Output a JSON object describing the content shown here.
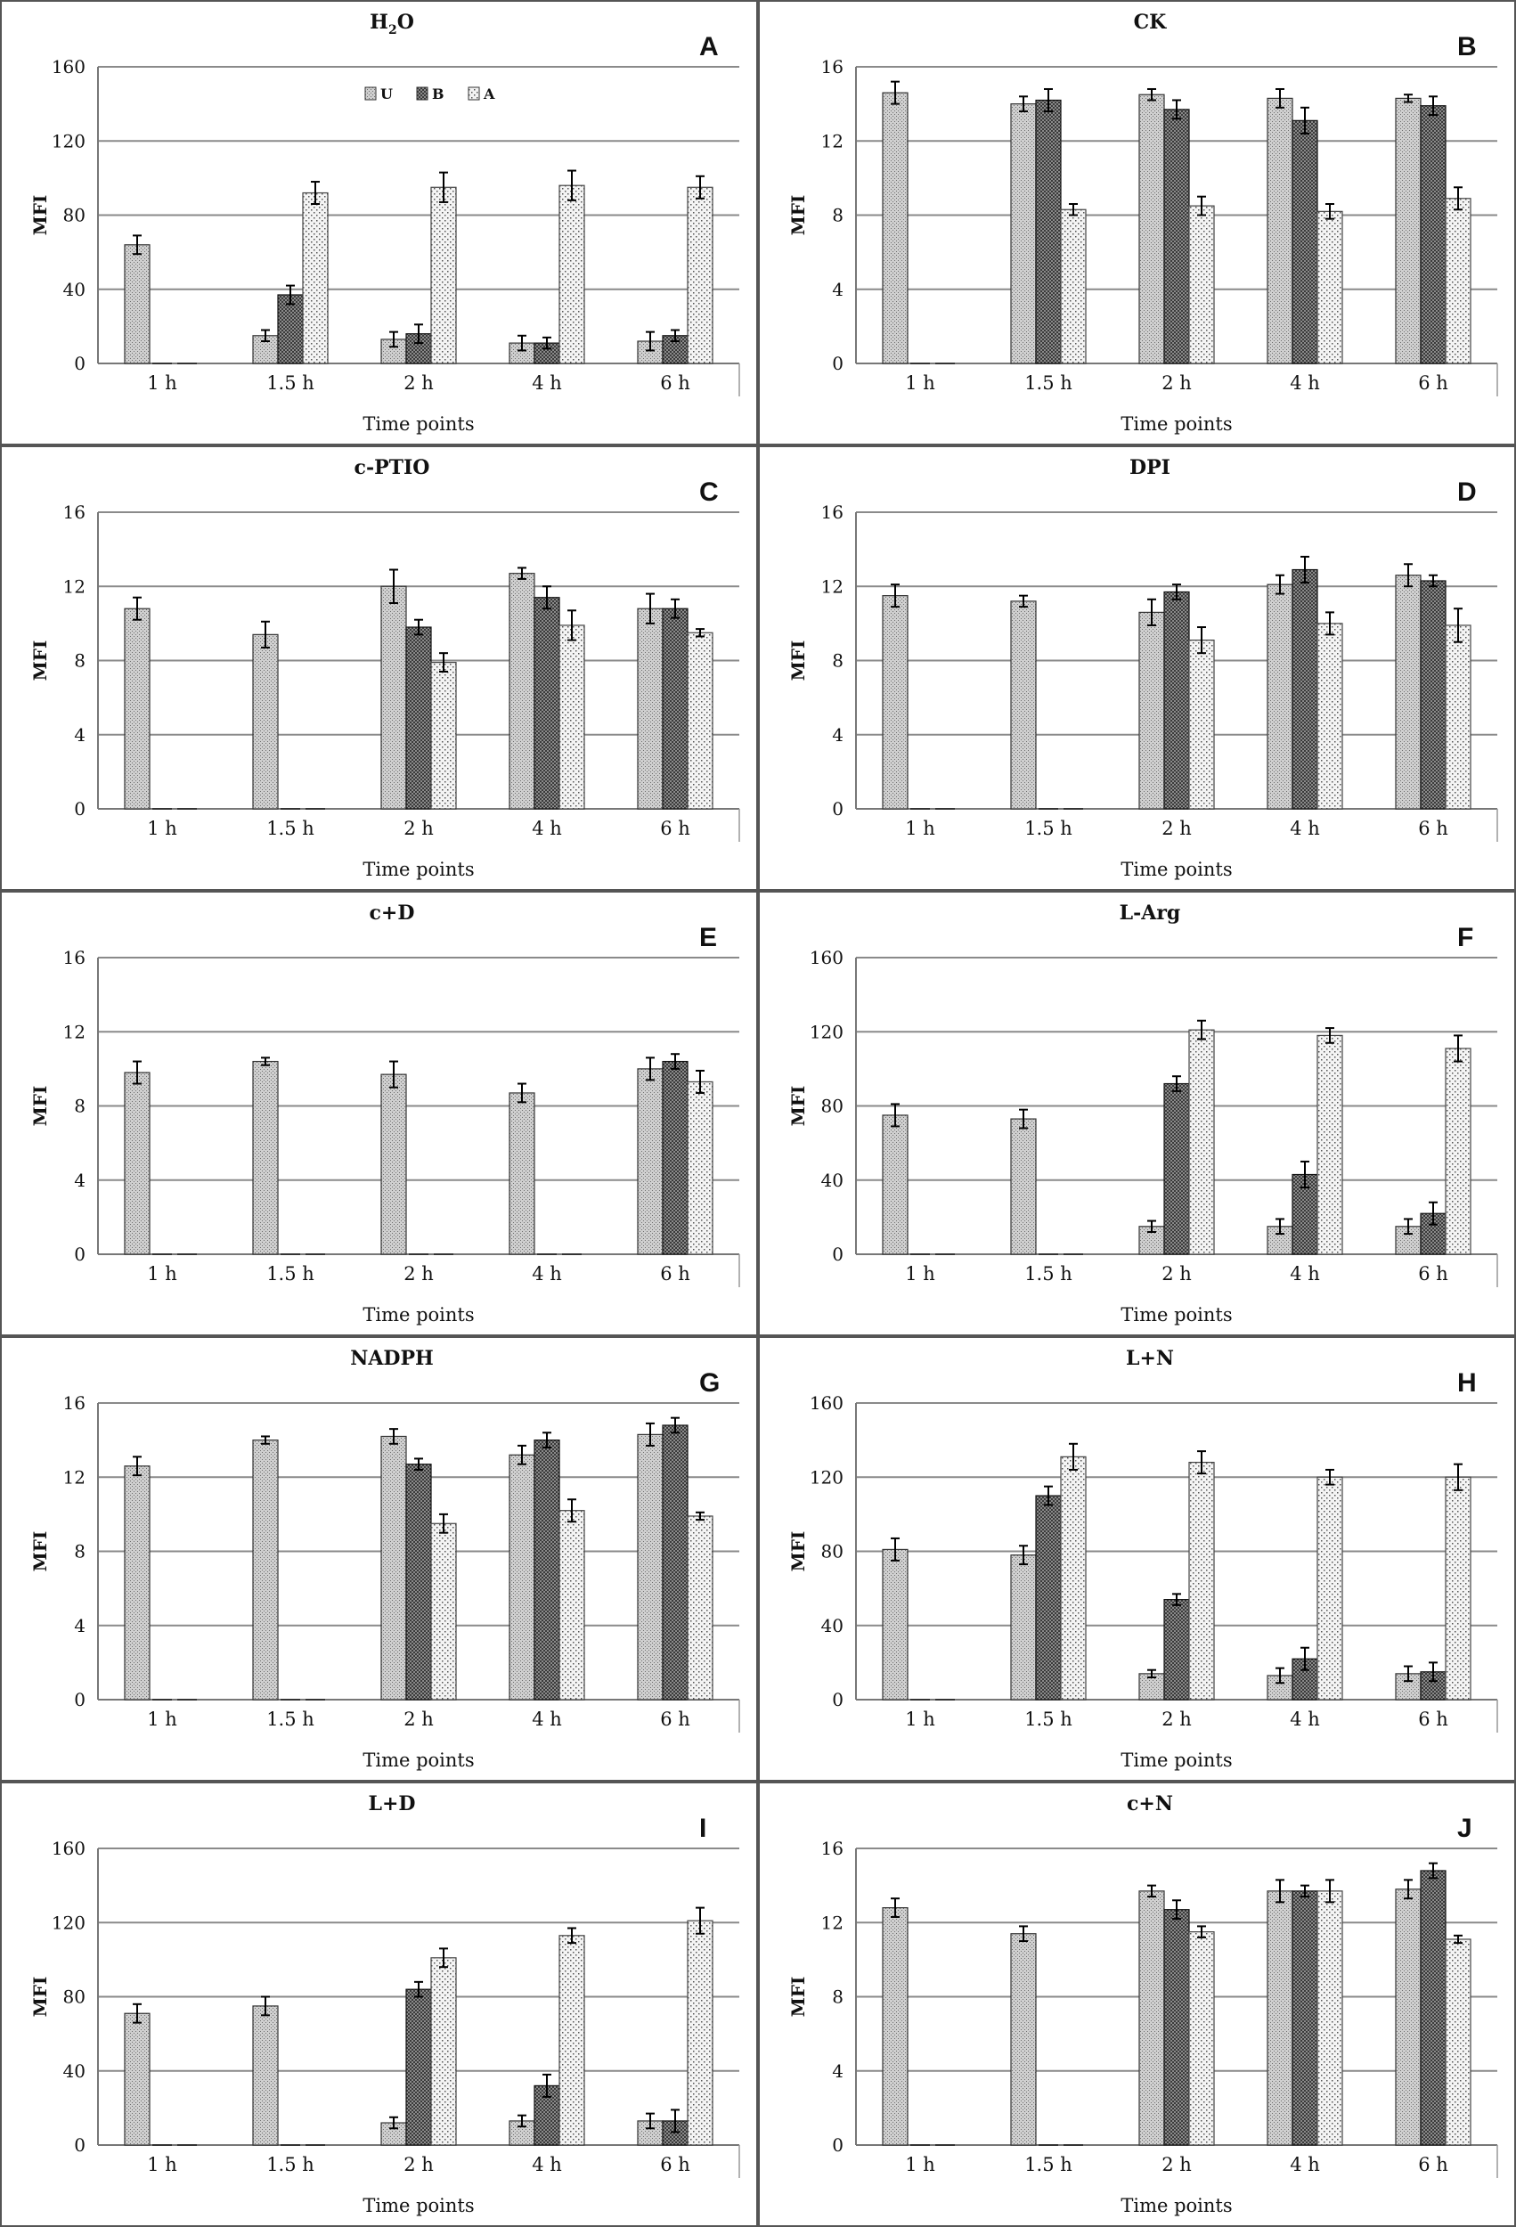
{
  "chart_data": [
    {
      "panel": "A",
      "title": "H2O",
      "title_main": "H",
      "title_sub": "2",
      "title_rest": "O",
      "type": "bar",
      "ylabel": "MFI",
      "xlabel": "Time points",
      "ylim": [
        0,
        160
      ],
      "yticks": [
        0,
        40,
        80,
        120,
        160
      ],
      "categories": [
        "1 h",
        "1.5 h",
        "2 h",
        "4 h",
        "6 h"
      ],
      "legend": [
        "U",
        "B",
        "A"
      ],
      "series": [
        {
          "name": "U",
          "values": [
            64,
            15,
            13,
            11,
            12
          ],
          "errors": [
            5,
            3,
            4,
            4,
            5
          ]
        },
        {
          "name": "B",
          "values": [
            0,
            37,
            16,
            11,
            15
          ],
          "errors": [
            0,
            5,
            5,
            3,
            3
          ]
        },
        {
          "name": "A",
          "values": [
            0,
            92,
            95,
            96,
            95
          ],
          "errors": [
            0,
            6,
            8,
            8,
            6
          ]
        }
      ]
    },
    {
      "panel": "B",
      "title": "CK",
      "type": "bar",
      "ylabel": "MFI",
      "xlabel": "Time points",
      "ylim": [
        0,
        16
      ],
      "yticks": [
        0,
        4,
        8,
        12,
        16
      ],
      "categories": [
        "1 h",
        "1.5 h",
        "2 h",
        "4 h",
        "6 h"
      ],
      "series": [
        {
          "name": "U",
          "values": [
            14.6,
            14.0,
            14.5,
            14.3,
            14.3
          ],
          "errors": [
            0.6,
            0.4,
            0.3,
            0.5,
            0.2
          ]
        },
        {
          "name": "B",
          "values": [
            0,
            14.2,
            13.7,
            13.1,
            13.9
          ],
          "errors": [
            0,
            0.6,
            0.5,
            0.7,
            0.5
          ]
        },
        {
          "name": "A",
          "values": [
            0,
            8.3,
            8.5,
            8.2,
            8.9
          ],
          "errors": [
            0,
            0.3,
            0.5,
            0.4,
            0.6
          ]
        }
      ]
    },
    {
      "panel": "C",
      "title": "c-PTIO",
      "type": "bar",
      "ylabel": "MFI",
      "xlabel": "Time points",
      "ylim": [
        0,
        16
      ],
      "yticks": [
        0,
        4,
        8,
        12,
        16
      ],
      "categories": [
        "1 h",
        "1.5 h",
        "2 h",
        "4 h",
        "6 h"
      ],
      "series": [
        {
          "name": "U",
          "values": [
            10.8,
            9.4,
            12.0,
            12.7,
            10.8
          ],
          "errors": [
            0.6,
            0.7,
            0.9,
            0.3,
            0.8
          ]
        },
        {
          "name": "B",
          "values": [
            0,
            0,
            9.8,
            11.4,
            10.8
          ],
          "errors": [
            0,
            0,
            0.4,
            0.6,
            0.5
          ]
        },
        {
          "name": "A",
          "values": [
            0,
            0,
            7.9,
            9.9,
            9.5
          ],
          "errors": [
            0,
            0,
            0.5,
            0.8,
            0.2
          ]
        }
      ]
    },
    {
      "panel": "D",
      "title": "DPI",
      "type": "bar",
      "ylabel": "MFI",
      "xlabel": "Time points",
      "ylim": [
        0,
        16
      ],
      "yticks": [
        0,
        4,
        8,
        12,
        16
      ],
      "categories": [
        "1 h",
        "1.5 h",
        "2 h",
        "4 h",
        "6 h"
      ],
      "series": [
        {
          "name": "U",
          "values": [
            11.5,
            11.2,
            10.6,
            12.1,
            12.6
          ],
          "errors": [
            0.6,
            0.3,
            0.7,
            0.5,
            0.6
          ]
        },
        {
          "name": "B",
          "values": [
            0,
            0,
            11.7,
            12.9,
            12.3
          ],
          "errors": [
            0,
            0,
            0.4,
            0.7,
            0.3
          ]
        },
        {
          "name": "A",
          "values": [
            0,
            0,
            9.1,
            10.0,
            9.9
          ],
          "errors": [
            0,
            0,
            0.7,
            0.6,
            0.9
          ]
        }
      ]
    },
    {
      "panel": "E",
      "title": "c+D",
      "type": "bar",
      "ylabel": "MFI",
      "xlabel": "Time points",
      "ylim": [
        0,
        16
      ],
      "yticks": [
        0,
        4,
        8,
        12,
        16
      ],
      "categories": [
        "1 h",
        "1.5 h",
        "2 h",
        "4 h",
        "6 h"
      ],
      "series": [
        {
          "name": "U",
          "values": [
            9.8,
            10.4,
            9.7,
            8.7,
            10.0
          ],
          "errors": [
            0.6,
            0.2,
            0.7,
            0.5,
            0.6
          ]
        },
        {
          "name": "B",
          "values": [
            0,
            0,
            0,
            0,
            10.4
          ],
          "errors": [
            0,
            0,
            0,
            0,
            0.4
          ]
        },
        {
          "name": "A",
          "values": [
            0,
            0,
            0,
            0,
            9.3
          ],
          "errors": [
            0,
            0,
            0,
            0,
            0.6
          ]
        }
      ]
    },
    {
      "panel": "F",
      "title": "L-Arg",
      "type": "bar",
      "ylabel": "MFI",
      "xlabel": "Time points",
      "ylim": [
        0,
        160
      ],
      "yticks": [
        0,
        40,
        80,
        120,
        160
      ],
      "categories": [
        "1 h",
        "1.5 h",
        "2 h",
        "4 h",
        "6 h"
      ],
      "series": [
        {
          "name": "U",
          "values": [
            75,
            73,
            15,
            15,
            15
          ],
          "errors": [
            6,
            5,
            3,
            4,
            4
          ]
        },
        {
          "name": "B",
          "values": [
            0,
            0,
            92,
            43,
            22
          ],
          "errors": [
            0,
            0,
            4,
            7,
            6
          ]
        },
        {
          "name": "A",
          "values": [
            0,
            0,
            121,
            118,
            111
          ],
          "errors": [
            0,
            0,
            5,
            4,
            7
          ]
        }
      ]
    },
    {
      "panel": "G",
      "title": "NADPH",
      "type": "bar",
      "ylabel": "MFI",
      "xlabel": "Time points",
      "ylim": [
        0,
        16
      ],
      "yticks": [
        0,
        4,
        8,
        12,
        16
      ],
      "categories": [
        "1 h",
        "1.5 h",
        "2 h",
        "4 h",
        "6 h"
      ],
      "series": [
        {
          "name": "U",
          "values": [
            12.6,
            14.0,
            14.2,
            13.2,
            14.3
          ],
          "errors": [
            0.5,
            0.2,
            0.4,
            0.5,
            0.6
          ]
        },
        {
          "name": "B",
          "values": [
            0,
            0,
            12.7,
            14.0,
            14.8
          ],
          "errors": [
            0,
            0,
            0.3,
            0.4,
            0.4
          ]
        },
        {
          "name": "A",
          "values": [
            0,
            0,
            9.5,
            10.2,
            9.9
          ],
          "errors": [
            0,
            0,
            0.5,
            0.6,
            0.2
          ]
        }
      ]
    },
    {
      "panel": "H",
      "title": "L+N",
      "type": "bar",
      "ylabel": "MFI",
      "xlabel": "Time points",
      "ylim": [
        0,
        160
      ],
      "yticks": [
        0,
        40,
        80,
        120,
        160
      ],
      "categories": [
        "1 h",
        "1.5 h",
        "2 h",
        "4 h",
        "6 h"
      ],
      "series": [
        {
          "name": "U",
          "values": [
            81,
            78,
            14,
            13,
            14
          ],
          "errors": [
            6,
            5,
            2,
            4,
            4
          ]
        },
        {
          "name": "B",
          "values": [
            0,
            110,
            54,
            22,
            15
          ],
          "errors": [
            0,
            5,
            3,
            6,
            5
          ]
        },
        {
          "name": "A",
          "values": [
            0,
            131,
            128,
            120,
            120
          ],
          "errors": [
            0,
            7,
            6,
            4,
            7
          ]
        }
      ]
    },
    {
      "panel": "I",
      "title": "L+D",
      "type": "bar",
      "ylabel": "MFI",
      "xlabel": "Time points",
      "ylim": [
        0,
        160
      ],
      "yticks": [
        0,
        40,
        80,
        120,
        160
      ],
      "categories": [
        "1 h",
        "1.5 h",
        "2 h",
        "4 h",
        "6 h"
      ],
      "series": [
        {
          "name": "U",
          "values": [
            71,
            75,
            12,
            13,
            13
          ],
          "errors": [
            5,
            5,
            3,
            3,
            4
          ]
        },
        {
          "name": "B",
          "values": [
            0,
            0,
            84,
            32,
            13
          ],
          "errors": [
            0,
            0,
            4,
            6,
            6
          ]
        },
        {
          "name": "A",
          "values": [
            0,
            0,
            101,
            113,
            121
          ],
          "errors": [
            0,
            0,
            5,
            4,
            7
          ]
        }
      ]
    },
    {
      "panel": "J",
      "title": "c+N",
      "type": "bar",
      "ylabel": "MFI",
      "xlabel": "Time points",
      "ylim": [
        0,
        16
      ],
      "yticks": [
        0,
        4,
        8,
        12,
        16
      ],
      "categories": [
        "1 h",
        "1.5 h",
        "2 h",
        "4 h",
        "6 h"
      ],
      "series": [
        {
          "name": "U",
          "values": [
            12.8,
            11.4,
            13.7,
            13.7,
            13.8
          ],
          "errors": [
            0.5,
            0.4,
            0.3,
            0.6,
            0.5
          ]
        },
        {
          "name": "B",
          "values": [
            0,
            0,
            12.7,
            13.7,
            14.8
          ],
          "errors": [
            0,
            0,
            0.5,
            0.3,
            0.4
          ]
        },
        {
          "name": "A",
          "values": [
            0,
            0,
            11.5,
            13.7,
            11.1
          ],
          "errors": [
            0,
            0,
            0.3,
            0.6,
            0.2
          ]
        }
      ]
    }
  ]
}
